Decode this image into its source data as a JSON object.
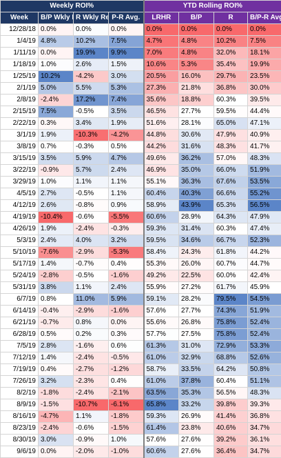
{
  "headers": {
    "group_weekly": "Weekly ROI%",
    "group_ytd": "YTD Rolling ROI%",
    "columns": [
      "Week",
      "B/P Wkly Return%",
      "R Wkly Return%",
      "P-R Avg.",
      "LRHR",
      "B/P",
      "R",
      "B/P-R Avg."
    ]
  },
  "rows": [
    {
      "week": "12/28/18",
      "v": [
        "0.0%",
        "0.0%",
        "0.0%",
        "0.0%",
        "0.0%",
        "0.0%",
        "0.0%"
      ]
    },
    {
      "week": "1/4/19",
      "v": [
        "4.8%",
        "10.2%",
        "7.5%",
        "4.7%",
        "4.8%",
        "10.2%",
        "7.5%"
      ]
    },
    {
      "week": "1/11/19",
      "v": [
        "0.0%",
        "19.9%",
        "9.9%",
        "7.0%",
        "4.8%",
        "32.0%",
        "18.1%"
      ]
    },
    {
      "week": "1/18/19",
      "v": [
        "1.0%",
        "2.6%",
        "1.5%",
        "10.6%",
        "5.3%",
        "35.4%",
        "19.9%"
      ]
    },
    {
      "week": "1/25/19",
      "v": [
        "10.2%",
        "-4.2%",
        "3.0%",
        "20.5%",
        "16.0%",
        "29.7%",
        "23.5%"
      ]
    },
    {
      "week": "2/1/19",
      "v": [
        "5.0%",
        "5.5%",
        "5.3%",
        "27.3%",
        "21.8%",
        "36.8%",
        "30.0%"
      ]
    },
    {
      "week": "2/8/19",
      "v": [
        "-2.4%",
        "17.2%",
        "7.4%",
        "35.6%",
        "18.8%",
        "60.3%",
        "39.5%"
      ]
    },
    {
      "week": "2/15/19",
      "v": [
        "7.5%",
        "-0.5%",
        "3.5%",
        "46.5%",
        "27.7%",
        "59.5%",
        "44.4%"
      ]
    },
    {
      "week": "2/22/19",
      "v": [
        "0.3%",
        "3.4%",
        "1.9%",
        "51.6%",
        "28.1%",
        "65.0%",
        "47.1%"
      ]
    },
    {
      "week": "3/1/19",
      "v": [
        "1.9%",
        "-10.3%",
        "-4.2%",
        "44.8%",
        "30.6%",
        "47.9%",
        "40.9%"
      ]
    },
    {
      "week": "3/8/19",
      "v": [
        "0.7%",
        "-0.3%",
        "0.5%",
        "44.2%",
        "31.6%",
        "48.3%",
        "41.7%"
      ]
    },
    {
      "week": "3/15/19",
      "v": [
        "3.5%",
        "5.9%",
        "4.7%",
        "49.6%",
        "36.2%",
        "57.0%",
        "48.3%"
      ]
    },
    {
      "week": "3/22/19",
      "v": [
        "-0.9%",
        "5.7%",
        "2.4%",
        "46.9%",
        "35.0%",
        "66.0%",
        "51.9%"
      ]
    },
    {
      "week": "3/29/19",
      "v": [
        "1.0%",
        "1.1%",
        "1.1%",
        "55.1%",
        "36.3%",
        "67.6%",
        "53.5%"
      ]
    },
    {
      "week": "4/5/19",
      "v": [
        "2.7%",
        "-0.5%",
        "1.1%",
        "60.4%",
        "40.3%",
        "66.6%",
        "55.2%"
      ]
    },
    {
      "week": "4/12/19",
      "v": [
        "2.6%",
        "-0.8%",
        "0.9%",
        "58.9%",
        "43.9%",
        "65.3%",
        "56.5%"
      ]
    },
    {
      "week": "4/19/19",
      "v": [
        "-10.4%",
        "-0.6%",
        "-5.5%",
        "60.6%",
        "28.9%",
        "64.3%",
        "47.9%"
      ]
    },
    {
      "week": "4/26/19",
      "v": [
        "1.9%",
        "-2.4%",
        "-0.3%",
        "59.3%",
        "31.4%",
        "60.3%",
        "47.4%"
      ]
    },
    {
      "week": "5/3/19",
      "v": [
        "2.4%",
        "4.0%",
        "3.2%",
        "59.5%",
        "34.6%",
        "66.7%",
        "52.3%"
      ]
    },
    {
      "week": "5/10/19",
      "v": [
        "-7.6%",
        "-2.9%",
        "-5.3%",
        "58.4%",
        "24.3%",
        "61.8%",
        "44.2%"
      ]
    },
    {
      "week": "5/17/19",
      "v": [
        "1.4%",
        "-0.7%",
        "0.4%",
        "55.3%",
        "26.0%",
        "60.7%",
        "44.7%"
      ]
    },
    {
      "week": "5/24/19",
      "v": [
        "-2.8%",
        "-0.5%",
        "-1.6%",
        "49.2%",
        "22.5%",
        "60.0%",
        "42.4%"
      ]
    },
    {
      "week": "5/31/19",
      "v": [
        "3.8%",
        "1.1%",
        "2.4%",
        "55.9%",
        "27.2%",
        "61.7%",
        "45.9%"
      ]
    },
    {
      "week": "6/7/19",
      "v": [
        "0.8%",
        "11.0%",
        "5.9%",
        "59.1%",
        "28.2%",
        "79.5%",
        "54.5%"
      ]
    },
    {
      "week": "6/14/19",
      "v": [
        "-0.4%",
        "-2.9%",
        "-1.6%",
        "57.6%",
        "27.7%",
        "74.3%",
        "51.9%"
      ]
    },
    {
      "week": "6/21/19",
      "v": [
        "-0.7%",
        "0.8%",
        "0.0%",
        "55.6%",
        "26.8%",
        "75.8%",
        "52.4%"
      ]
    },
    {
      "week": "6/28/19",
      "v": [
        "0.5%",
        "0.2%",
        "0.3%",
        "57.7%",
        "27.5%",
        "75.8%",
        "52.4%"
      ]
    },
    {
      "week": "7/5/19",
      "v": [
        "2.8%",
        "-1.6%",
        "0.6%",
        "61.3%",
        "31.0%",
        "72.9%",
        "53.3%"
      ]
    },
    {
      "week": "7/12/19",
      "v": [
        "1.4%",
        "-2.4%",
        "-0.5%",
        "61.0%",
        "32.9%",
        "68.8%",
        "52.6%"
      ]
    },
    {
      "week": "7/19/19",
      "v": [
        "0.4%",
        "-2.7%",
        "-1.2%",
        "58.7%",
        "33.5%",
        "64.2%",
        "50.8%"
      ]
    },
    {
      "week": "7/26/19",
      "v": [
        "3.2%",
        "-2.3%",
        "0.4%",
        "61.0%",
        "37.8%",
        "60.4%",
        "51.1%"
      ]
    },
    {
      "week": "8/2/19",
      "v": [
        "-1.8%",
        "-2.4%",
        "-2.1%",
        "63.5%",
        "35.3%",
        "56.5%",
        "48.3%"
      ]
    },
    {
      "week": "8/9/19",
      "v": [
        "-1.5%",
        "-10.7%",
        "-6.1%",
        "65.8%",
        "33.2%",
        "39.8%",
        "39.3%"
      ]
    },
    {
      "week": "8/16/19",
      "v": [
        "-4.7%",
        "1.1%",
        "-1.8%",
        "59.3%",
        "26.9%",
        "41.4%",
        "36.8%"
      ]
    },
    {
      "week": "8/23/19",
      "v": [
        "-2.4%",
        "-0.6%",
        "-1.5%",
        "61.4%",
        "23.8%",
        "40.6%",
        "34.7%"
      ]
    },
    {
      "week": "8/30/19",
      "v": [
        "3.0%",
        "-0.9%",
        "1.0%",
        "57.6%",
        "27.6%",
        "39.2%",
        "36.1%"
      ]
    },
    {
      "week": "9/6/19",
      "v": [
        "0.0%",
        "-2.0%",
        "-1.0%",
        "60.6%",
        "27.6%",
        "36.4%",
        "34.7%"
      ]
    }
  ],
  "colors": {
    "weekly_header": "#1f3864",
    "ytd_header": "#7030a0",
    "scale_high": "#5b85c8",
    "scale_mid": "#ffffff",
    "scale_low": "#f8696b"
  }
}
